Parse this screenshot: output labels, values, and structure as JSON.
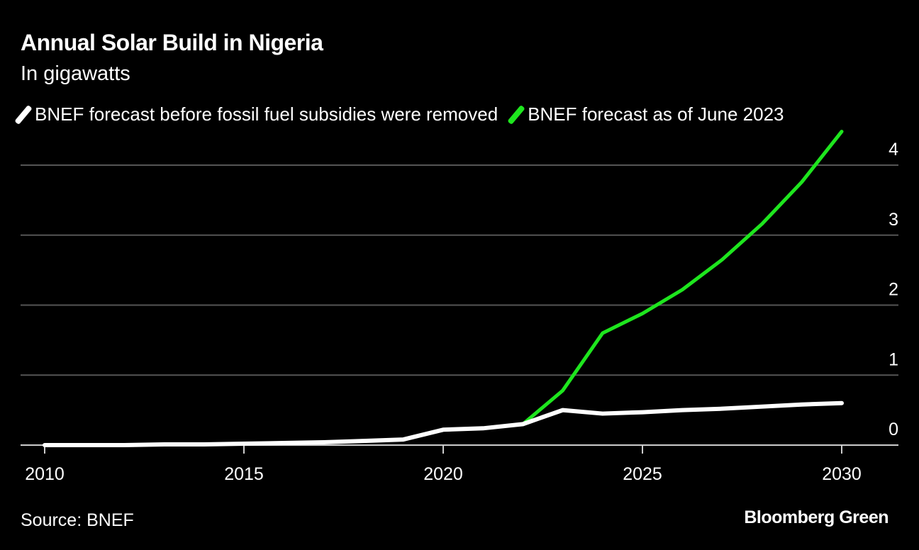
{
  "chart_data": {
    "type": "line",
    "title": "Annual Solar Build in Nigeria",
    "subtitle": "In gigawatts",
    "xlabel": "",
    "ylabel": "",
    "xlim": [
      2009.5,
      2031.4
    ],
    "ylim": [
      0,
      4.5
    ],
    "x_ticks": [
      "2010",
      "2015",
      "2020",
      "2025",
      "2030"
    ],
    "y_ticks": [
      "0",
      "1",
      "2",
      "3",
      "4"
    ],
    "grid": true,
    "legend_position": "top",
    "series": [
      {
        "name": "BNEF forecast before fossil fuel subsidies were removed",
        "color": "#ffffff",
        "x": [
          2010,
          2011,
          2012,
          2013,
          2014,
          2015,
          2016,
          2017,
          2018,
          2019,
          2020,
          2021,
          2022,
          2023,
          2024,
          2025,
          2026,
          2027,
          2028,
          2029,
          2030
        ],
        "values": [
          0,
          0,
          0,
          0.01,
          0.01,
          0.02,
          0.03,
          0.04,
          0.06,
          0.08,
          0.22,
          0.24,
          0.3,
          0.5,
          0.45,
          0.47,
          0.5,
          0.52,
          0.55,
          0.58,
          0.6
        ]
      },
      {
        "name": "BNEF forecast as of June 2023",
        "color": "#1ee61e",
        "x": [
          2012,
          2013,
          2014,
          2015,
          2016,
          2017,
          2018,
          2019,
          2020,
          2021,
          2022,
          2023,
          2024,
          2025,
          2026,
          2027,
          2028,
          2029,
          2030
        ],
        "values": [
          0,
          0.01,
          0.01,
          0.02,
          0.03,
          0.04,
          0.06,
          0.08,
          0.22,
          0.24,
          0.3,
          0.78,
          1.6,
          1.88,
          2.22,
          2.65,
          3.16,
          3.76,
          4.48
        ]
      }
    ]
  },
  "footer": {
    "source": "Source: BNEF",
    "brand": "Bloomberg Green"
  }
}
